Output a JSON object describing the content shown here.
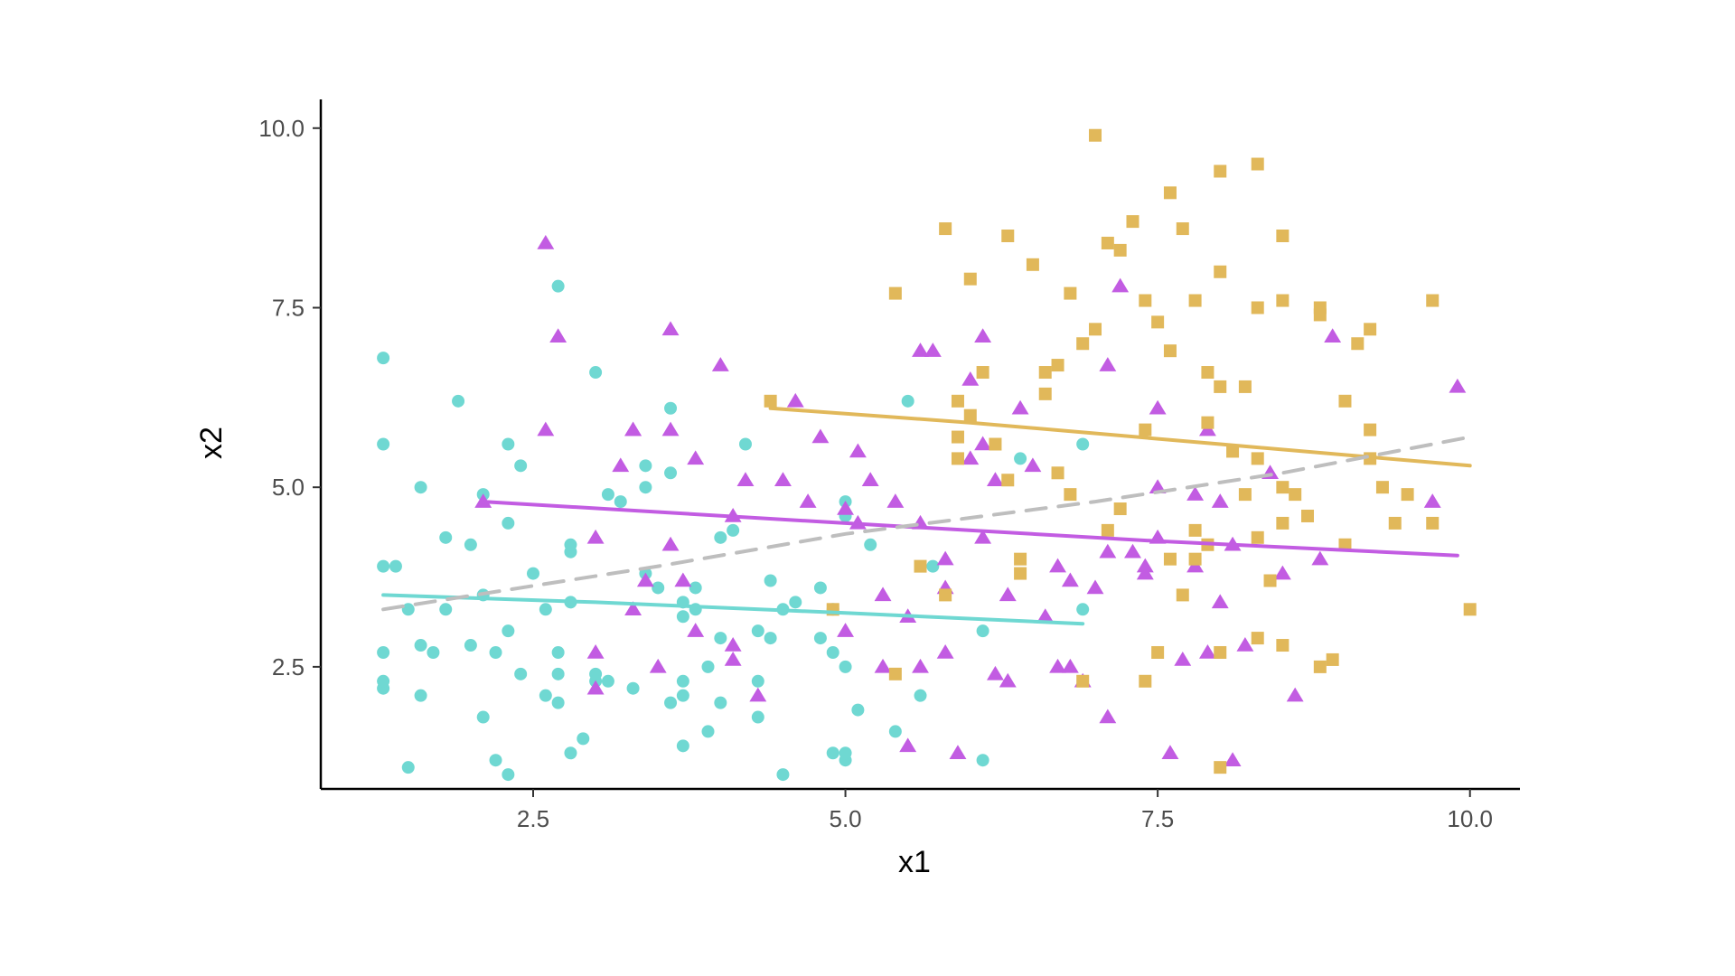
{
  "chart_data": {
    "type": "scatter",
    "xlabel": "x1",
    "ylabel": "x2",
    "xlim": [
      0.8,
      10.4
    ],
    "ylim": [
      0.8,
      10.4
    ],
    "xticks": [
      2.5,
      5.0,
      7.5,
      10.0
    ],
    "xtick_labels": [
      "2.5",
      "5.0",
      "7.5",
      "10.0"
    ],
    "yticks": [
      2.5,
      5.0,
      7.5,
      10.0
    ],
    "ytick_labels": [
      "2.5",
      "5.0",
      "7.5",
      "10.0"
    ],
    "grid": false,
    "legend": "none",
    "series": [
      {
        "marker": "circle",
        "color": "#6fd8d2",
        "points": [
          [
            1.3,
            6.8
          ],
          [
            1.3,
            5.6
          ],
          [
            1.3,
            3.9
          ],
          [
            1.4,
            3.9
          ],
          [
            1.3,
            2.2
          ],
          [
            1.3,
            2.3
          ],
          [
            1.3,
            2.7
          ],
          [
            1.5,
            1.1
          ],
          [
            1.5,
            3.3
          ],
          [
            1.6,
            5.0
          ],
          [
            1.6,
            2.8
          ],
          [
            1.6,
            2.1
          ],
          [
            1.7,
            2.7
          ],
          [
            1.8,
            4.3
          ],
          [
            1.8,
            3.3
          ],
          [
            1.9,
            6.2
          ],
          [
            2.0,
            4.2
          ],
          [
            2.1,
            4.9
          ],
          [
            2.1,
            3.5
          ],
          [
            2.1,
            1.8
          ],
          [
            2.0,
            2.8
          ],
          [
            2.2,
            1.2
          ],
          [
            2.2,
            2.7
          ],
          [
            2.3,
            5.6
          ],
          [
            2.3,
            3.0
          ],
          [
            2.4,
            5.3
          ],
          [
            2.3,
            4.5
          ],
          [
            2.3,
            1.0
          ],
          [
            2.4,
            2.4
          ],
          [
            2.5,
            3.8
          ],
          [
            2.6,
            2.1
          ],
          [
            2.6,
            3.3
          ],
          [
            2.7,
            7.8
          ],
          [
            2.7,
            2.7
          ],
          [
            2.7,
            2.0
          ],
          [
            2.7,
            2.4
          ],
          [
            2.8,
            4.1
          ],
          [
            2.8,
            4.2
          ],
          [
            2.8,
            1.3
          ],
          [
            2.8,
            3.4
          ],
          [
            2.9,
            1.5
          ],
          [
            3.0,
            6.6
          ],
          [
            3.0,
            2.4
          ],
          [
            3.0,
            2.3
          ],
          [
            3.1,
            2.3
          ],
          [
            3.1,
            4.9
          ],
          [
            3.2,
            4.8
          ],
          [
            3.3,
            2.2
          ],
          [
            3.4,
            5.0
          ],
          [
            3.4,
            5.3
          ],
          [
            3.4,
            3.8
          ],
          [
            3.5,
            3.6
          ],
          [
            3.6,
            2.0
          ],
          [
            3.6,
            6.1
          ],
          [
            3.6,
            5.2
          ],
          [
            3.7,
            1.4
          ],
          [
            3.7,
            2.3
          ],
          [
            3.7,
            2.1
          ],
          [
            3.7,
            3.2
          ],
          [
            3.7,
            3.4
          ],
          [
            3.8,
            3.6
          ],
          [
            3.8,
            3.3
          ],
          [
            3.9,
            1.6
          ],
          [
            3.9,
            2.5
          ],
          [
            4.0,
            2.0
          ],
          [
            4.0,
            4.3
          ],
          [
            4.0,
            2.9
          ],
          [
            4.1,
            4.4
          ],
          [
            4.2,
            5.6
          ],
          [
            4.3,
            1.8
          ],
          [
            4.3,
            2.3
          ],
          [
            4.3,
            3.0
          ],
          [
            4.4,
            3.7
          ],
          [
            4.4,
            2.9
          ],
          [
            4.5,
            1.0
          ],
          [
            4.5,
            3.3
          ],
          [
            4.6,
            3.4
          ],
          [
            4.8,
            3.6
          ],
          [
            4.8,
            2.9
          ],
          [
            4.9,
            2.7
          ],
          [
            4.9,
            3.3
          ],
          [
            4.9,
            1.3
          ],
          [
            5.0,
            1.2
          ],
          [
            5.0,
            4.6
          ],
          [
            5.0,
            2.5
          ],
          [
            5.0,
            4.8
          ],
          [
            5.0,
            1.3
          ],
          [
            5.1,
            1.9
          ],
          [
            5.2,
            4.2
          ],
          [
            5.4,
            1.6
          ],
          [
            5.5,
            6.2
          ],
          [
            5.6,
            2.1
          ],
          [
            5.7,
            3.9
          ],
          [
            6.1,
            1.2
          ],
          [
            6.1,
            3.0
          ],
          [
            6.4,
            5.4
          ],
          [
            6.9,
            3.3
          ],
          [
            6.9,
            5.6
          ]
        ]
      },
      {
        "marker": "triangle",
        "color": "#c25ce2",
        "points": [
          [
            2.1,
            4.8
          ],
          [
            2.6,
            5.8
          ],
          [
            2.6,
            8.4
          ],
          [
            2.7,
            7.1
          ],
          [
            3.0,
            4.3
          ],
          [
            3.0,
            2.7
          ],
          [
            3.0,
            2.2
          ],
          [
            3.2,
            5.3
          ],
          [
            3.3,
            5.8
          ],
          [
            3.3,
            5.8
          ],
          [
            3.3,
            3.3
          ],
          [
            3.4,
            3.7
          ],
          [
            3.5,
            2.5
          ],
          [
            3.6,
            5.8
          ],
          [
            3.6,
            4.2
          ],
          [
            3.6,
            7.2
          ],
          [
            3.7,
            3.7
          ],
          [
            3.8,
            3.0
          ],
          [
            3.8,
            5.4
          ],
          [
            4.0,
            6.7
          ],
          [
            4.1,
            2.8
          ],
          [
            4.1,
            2.6
          ],
          [
            4.1,
            4.6
          ],
          [
            4.2,
            5.1
          ],
          [
            4.3,
            2.1
          ],
          [
            4.5,
            5.1
          ],
          [
            4.6,
            6.2
          ],
          [
            4.7,
            4.8
          ],
          [
            4.8,
            5.7
          ],
          [
            5.0,
            4.7
          ],
          [
            5.0,
            3.0
          ],
          [
            5.1,
            4.5
          ],
          [
            5.1,
            5.5
          ],
          [
            5.2,
            5.1
          ],
          [
            5.3,
            3.5
          ],
          [
            5.3,
            2.5
          ],
          [
            5.4,
            4.8
          ],
          [
            5.5,
            1.4
          ],
          [
            5.5,
            3.2
          ],
          [
            5.6,
            6.9
          ],
          [
            5.6,
            4.5
          ],
          [
            5.6,
            2.5
          ],
          [
            5.7,
            6.9
          ],
          [
            5.8,
            4.0
          ],
          [
            5.8,
            3.6
          ],
          [
            5.8,
            2.7
          ],
          [
            5.9,
            1.3
          ],
          [
            6.0,
            5.4
          ],
          [
            6.0,
            6.5
          ],
          [
            6.1,
            5.6
          ],
          [
            6.1,
            7.1
          ],
          [
            6.1,
            4.3
          ],
          [
            6.2,
            5.1
          ],
          [
            6.2,
            2.4
          ],
          [
            6.3,
            3.5
          ],
          [
            6.3,
            2.3
          ],
          [
            6.4,
            6.1
          ],
          [
            6.5,
            5.3
          ],
          [
            6.6,
            3.2
          ],
          [
            6.7,
            2.5
          ],
          [
            6.7,
            3.9
          ],
          [
            6.8,
            3.7
          ],
          [
            6.8,
            2.5
          ],
          [
            6.9,
            2.3
          ],
          [
            7.0,
            3.6
          ],
          [
            7.1,
            6.7
          ],
          [
            7.1,
            4.1
          ],
          [
            7.1,
            1.8
          ],
          [
            7.2,
            7.8
          ],
          [
            7.3,
            4.1
          ],
          [
            7.4,
            3.8
          ],
          [
            7.4,
            3.9
          ],
          [
            7.5,
            4.3
          ],
          [
            7.5,
            6.1
          ],
          [
            7.5,
            5.0
          ],
          [
            7.6,
            1.3
          ],
          [
            7.7,
            2.6
          ],
          [
            7.8,
            3.9
          ],
          [
            7.8,
            4.9
          ],
          [
            7.9,
            5.8
          ],
          [
            7.9,
            2.7
          ],
          [
            8.0,
            3.4
          ],
          [
            8.0,
            4.8
          ],
          [
            8.1,
            1.2
          ],
          [
            8.1,
            4.2
          ],
          [
            8.2,
            2.8
          ],
          [
            8.4,
            5.2
          ],
          [
            8.5,
            3.8
          ],
          [
            8.6,
            2.1
          ],
          [
            8.8,
            4.0
          ],
          [
            8.9,
            7.1
          ],
          [
            9.7,
            4.8
          ],
          [
            9.9,
            6.4
          ]
        ]
      },
      {
        "marker": "square",
        "color": "#e1b85a",
        "points": [
          [
            4.4,
            6.2
          ],
          [
            4.9,
            3.3
          ],
          [
            5.4,
            7.7
          ],
          [
            5.4,
            2.4
          ],
          [
            5.6,
            3.9
          ],
          [
            5.8,
            3.5
          ],
          [
            5.8,
            8.6
          ],
          [
            5.9,
            6.2
          ],
          [
            5.9,
            5.4
          ],
          [
            5.9,
            5.7
          ],
          [
            6.0,
            7.9
          ],
          [
            6.0,
            6.0
          ],
          [
            6.1,
            6.6
          ],
          [
            6.2,
            5.6
          ],
          [
            6.3,
            8.5
          ],
          [
            6.3,
            5.1
          ],
          [
            6.4,
            3.8
          ],
          [
            6.4,
            4.0
          ],
          [
            6.5,
            8.1
          ],
          [
            6.6,
            6.3
          ],
          [
            6.6,
            6.6
          ],
          [
            6.7,
            6.7
          ],
          [
            6.7,
            5.2
          ],
          [
            6.8,
            7.7
          ],
          [
            6.8,
            4.9
          ],
          [
            6.9,
            7.0
          ],
          [
            6.9,
            2.3
          ],
          [
            7.0,
            7.2
          ],
          [
            7.0,
            9.9
          ],
          [
            7.1,
            8.4
          ],
          [
            7.1,
            4.4
          ],
          [
            7.2,
            4.7
          ],
          [
            7.2,
            8.3
          ],
          [
            7.3,
            8.7
          ],
          [
            7.4,
            2.3
          ],
          [
            7.4,
            7.6
          ],
          [
            7.4,
            5.8
          ],
          [
            7.5,
            2.7
          ],
          [
            7.5,
            7.3
          ],
          [
            7.6,
            9.1
          ],
          [
            7.6,
            6.9
          ],
          [
            7.6,
            4.0
          ],
          [
            7.7,
            3.5
          ],
          [
            7.7,
            8.6
          ],
          [
            7.8,
            7.6
          ],
          [
            7.8,
            4.4
          ],
          [
            7.8,
            4.0
          ],
          [
            7.9,
            6.6
          ],
          [
            7.9,
            4.2
          ],
          [
            7.9,
            5.9
          ],
          [
            8.0,
            9.4
          ],
          [
            8.0,
            8.0
          ],
          [
            8.0,
            6.4
          ],
          [
            8.0,
            2.7
          ],
          [
            8.0,
            1.1
          ],
          [
            8.1,
            5.5
          ],
          [
            8.2,
            6.4
          ],
          [
            8.2,
            4.9
          ],
          [
            8.3,
            7.5
          ],
          [
            8.3,
            9.5
          ],
          [
            8.3,
            5.4
          ],
          [
            8.3,
            4.3
          ],
          [
            8.3,
            2.9
          ],
          [
            8.4,
            3.7
          ],
          [
            8.5,
            8.5
          ],
          [
            8.5,
            7.6
          ],
          [
            8.5,
            4.5
          ],
          [
            8.5,
            5.0
          ],
          [
            8.5,
            2.8
          ],
          [
            8.6,
            4.9
          ],
          [
            8.7,
            4.6
          ],
          [
            8.8,
            7.5
          ],
          [
            8.8,
            7.4
          ],
          [
            8.8,
            2.5
          ],
          [
            8.9,
            2.6
          ],
          [
            9.0,
            6.2
          ],
          [
            9.0,
            4.2
          ],
          [
            9.1,
            7.0
          ],
          [
            9.2,
            7.2
          ],
          [
            9.2,
            5.8
          ],
          [
            9.2,
            5.4
          ],
          [
            9.3,
            5.0
          ],
          [
            9.4,
            4.5
          ],
          [
            9.5,
            4.9
          ],
          [
            9.7,
            7.6
          ],
          [
            9.7,
            4.5
          ],
          [
            10.0,
            3.3
          ]
        ]
      }
    ],
    "trend_lines": [
      {
        "color": "#6fd8d2",
        "style": "solid",
        "points": [
          [
            1.3,
            3.5
          ],
          [
            3.0,
            3.4
          ],
          [
            5.0,
            3.25
          ],
          [
            6.9,
            3.1
          ]
        ]
      },
      {
        "color": "#c25ce2",
        "style": "solid",
        "points": [
          [
            2.1,
            4.8
          ],
          [
            5.0,
            4.5
          ],
          [
            7.5,
            4.25
          ],
          [
            9.9,
            4.05
          ]
        ]
      },
      {
        "color": "#e1b85a",
        "style": "solid",
        "points": [
          [
            4.4,
            6.1
          ],
          [
            6.0,
            5.9
          ],
          [
            8.0,
            5.6
          ],
          [
            10.0,
            5.3
          ]
        ]
      },
      {
        "color": "#bebebe",
        "style": "dashed",
        "points": [
          [
            1.3,
            3.3
          ],
          [
            3.5,
            3.9
          ],
          [
            5.0,
            4.35
          ],
          [
            7.0,
            4.8
          ],
          [
            8.5,
            5.2
          ],
          [
            10.0,
            5.7
          ]
        ]
      }
    ]
  }
}
